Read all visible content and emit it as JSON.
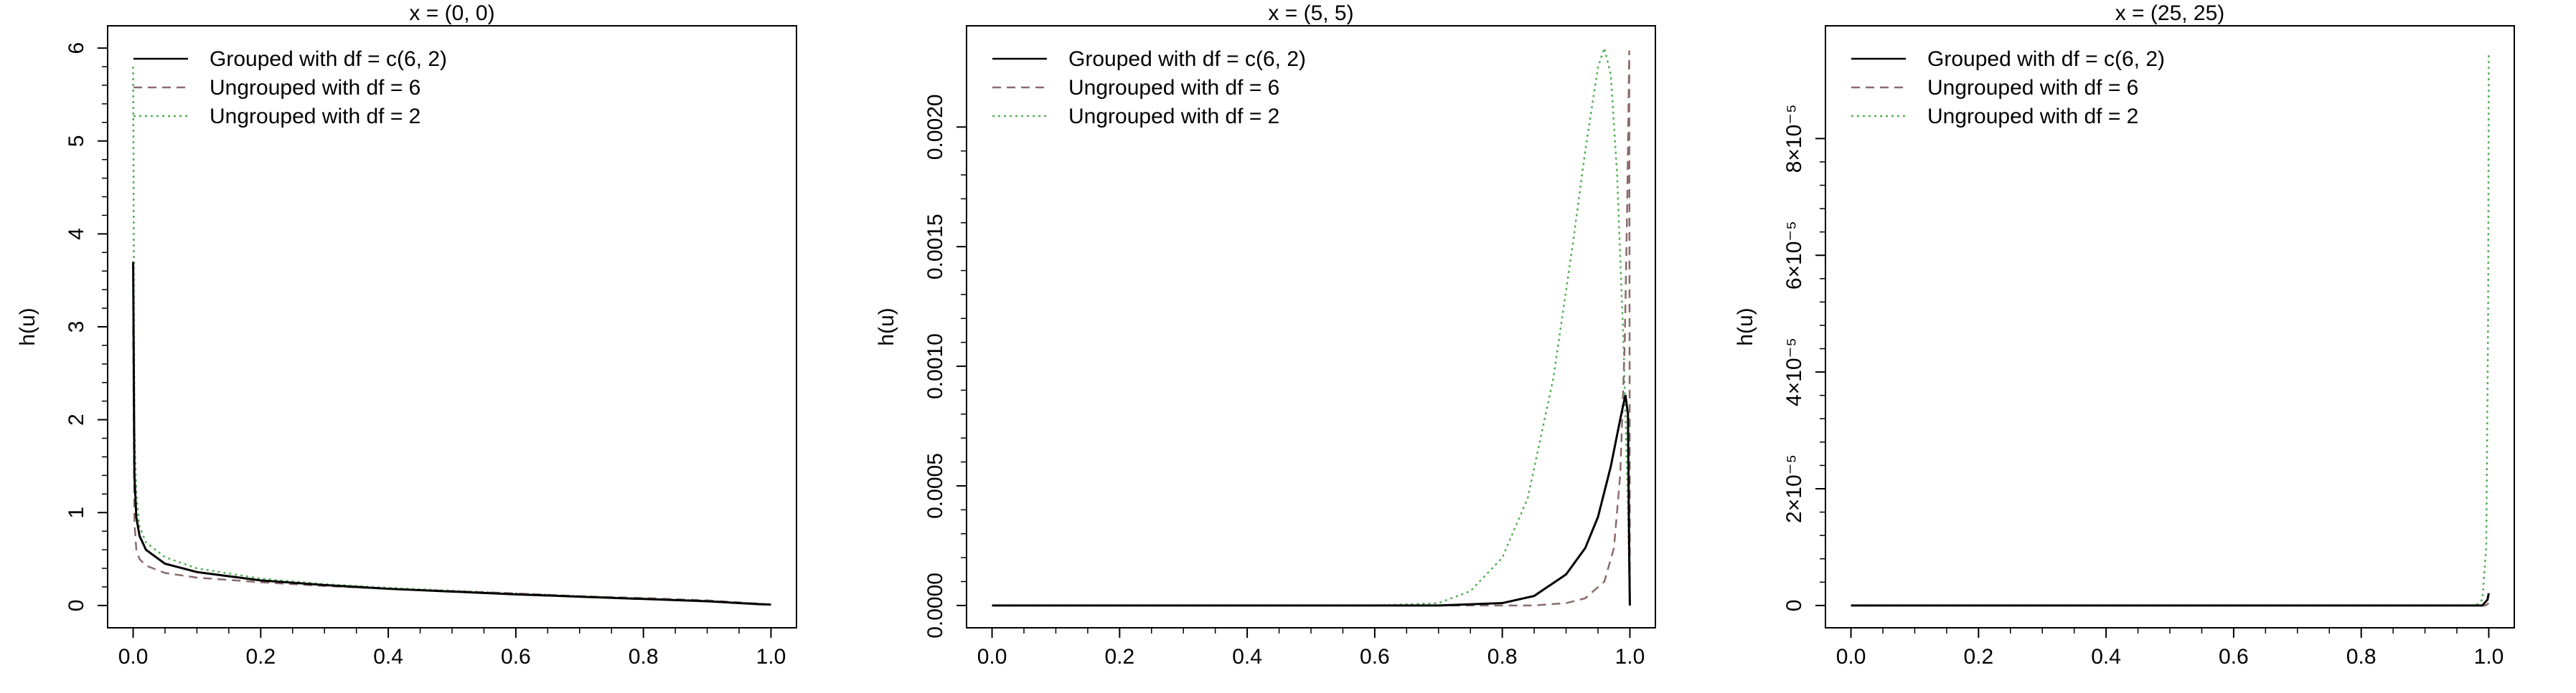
{
  "colors": {
    "grouped": "#000000",
    "ungrouped_df6": "#8B6B6B",
    "ungrouped_df2": "#52B152"
  },
  "legend": [
    {
      "label": "Grouped with df = c(6, 2)",
      "style": "solid"
    },
    {
      "label": "Ungrouped with df = 6",
      "style": "dashed"
    },
    {
      "label": "Ungrouped with df = 2",
      "style": "dotted"
    }
  ],
  "chart_data": [
    {
      "type": "line",
      "title": "x = (0, 0)",
      "xlabel": "",
      "ylabel": "h(u)",
      "xlim": [
        0,
        1
      ],
      "ylim": [
        0,
        6
      ],
      "xticks": [
        "0.0",
        "0.2",
        "0.4",
        "0.6",
        "0.8",
        "1.0"
      ],
      "yticks": [
        "0",
        "1",
        "2",
        "3",
        "4",
        "5",
        "6"
      ],
      "legend_position": "top-left",
      "grid": false,
      "series": [
        {
          "name": "Grouped with df = c(6, 2)",
          "points": [
            [
              0,
              3.7
            ],
            [
              0.002,
              1.4
            ],
            [
              0.005,
              0.95
            ],
            [
              0.01,
              0.75
            ],
            [
              0.02,
              0.6
            ],
            [
              0.05,
              0.45
            ],
            [
              0.1,
              0.36
            ],
            [
              0.2,
              0.27
            ],
            [
              0.3,
              0.22
            ],
            [
              0.4,
              0.18
            ],
            [
              0.5,
              0.15
            ],
            [
              0.6,
              0.12
            ],
            [
              0.7,
              0.095
            ],
            [
              0.8,
              0.07
            ],
            [
              0.9,
              0.045
            ],
            [
              0.98,
              0.015
            ],
            [
              1.0,
              0.01
            ]
          ]
        },
        {
          "name": "Ungrouped with df = 6",
          "points": [
            [
              0,
              3.0
            ],
            [
              0.002,
              0.9
            ],
            [
              0.005,
              0.6
            ],
            [
              0.01,
              0.5
            ],
            [
              0.02,
              0.43
            ],
            [
              0.05,
              0.35
            ],
            [
              0.1,
              0.3
            ],
            [
              0.2,
              0.25
            ],
            [
              0.3,
              0.21
            ],
            [
              0.4,
              0.18
            ],
            [
              0.5,
              0.155
            ],
            [
              0.6,
              0.13
            ],
            [
              0.7,
              0.1
            ],
            [
              0.8,
              0.08
            ],
            [
              0.9,
              0.055
            ],
            [
              0.98,
              0.02
            ],
            [
              1.0,
              0.01
            ]
          ]
        },
        {
          "name": "Ungrouped with df = 2",
          "points": [
            [
              0,
              5.8
            ],
            [
              0.002,
              1.9
            ],
            [
              0.005,
              1.2
            ],
            [
              0.01,
              0.85
            ],
            [
              0.02,
              0.68
            ],
            [
              0.05,
              0.52
            ],
            [
              0.1,
              0.4
            ],
            [
              0.2,
              0.29
            ],
            [
              0.3,
              0.23
            ],
            [
              0.4,
              0.19
            ],
            [
              0.5,
              0.16
            ],
            [
              0.6,
              0.13
            ],
            [
              0.7,
              0.1
            ],
            [
              0.8,
              0.075
            ],
            [
              0.9,
              0.05
            ],
            [
              0.98,
              0.02
            ],
            [
              1.0,
              0.01
            ]
          ]
        }
      ]
    },
    {
      "type": "line",
      "title": "x = (5, 5)",
      "xlabel": "",
      "ylabel": "h(u)",
      "xlim": [
        0,
        1
      ],
      "ylim": [
        0,
        0.00233
      ],
      "xticks": [
        "0.0",
        "0.2",
        "0.4",
        "0.6",
        "0.8",
        "1.0"
      ],
      "yticks": [
        "0.0000",
        "0.0005",
        "0.0010",
        "0.0015",
        "0.0020"
      ],
      "legend_position": "top-left",
      "grid": false,
      "series": [
        {
          "name": "Grouped with df = c(6, 2)",
          "points": [
            [
              0,
              0
            ],
            [
              0.7,
              0
            ],
            [
              0.8,
              1e-05
            ],
            [
              0.85,
              4e-05
            ],
            [
              0.9,
              0.00013
            ],
            [
              0.93,
              0.00024
            ],
            [
              0.95,
              0.00037
            ],
            [
              0.97,
              0.00058
            ],
            [
              0.985,
              0.00078
            ],
            [
              0.993,
              0.00088
            ],
            [
              0.997,
              0.0008
            ],
            [
              0.999,
              0.0002
            ],
            [
              1.0,
              0
            ]
          ]
        },
        {
          "name": "Ungrouped with df = 6",
          "points": [
            [
              0,
              0
            ],
            [
              0.85,
              0
            ],
            [
              0.9,
              1e-05
            ],
            [
              0.93,
              3e-05
            ],
            [
              0.96,
              0.0001
            ],
            [
              0.975,
              0.00024
            ],
            [
              0.985,
              0.00055
            ],
            [
              0.992,
              0.0011
            ],
            [
              0.996,
              0.0017
            ],
            [
              0.999,
              0.00232
            ],
            [
              1.0,
              0
            ]
          ]
        },
        {
          "name": "Ungrouped with df = 2",
          "points": [
            [
              0,
              0
            ],
            [
              0.6,
              0
            ],
            [
              0.7,
              1e-05
            ],
            [
              0.75,
              6e-05
            ],
            [
              0.8,
              0.0002
            ],
            [
              0.84,
              0.00045
            ],
            [
              0.88,
              0.00095
            ],
            [
              0.91,
              0.0015
            ],
            [
              0.93,
              0.0019
            ],
            [
              0.95,
              0.00225
            ],
            [
              0.96,
              0.00233
            ],
            [
              0.97,
              0.00222
            ],
            [
              0.98,
              0.0018
            ],
            [
              0.99,
              0.0011
            ],
            [
              0.997,
              0.0004
            ],
            [
              1.0,
              0
            ]
          ]
        }
      ]
    },
    {
      "type": "line",
      "title": "x = (25, 25)",
      "xlabel": "",
      "ylabel": "h(u)",
      "xlim": [
        0,
        1
      ],
      "ylim": [
        0,
        9.55e-05
      ],
      "xticks": [
        "0.0",
        "0.2",
        "0.4",
        "0.6",
        "0.8",
        "1.0"
      ],
      "yticks": [
        "0",
        "2×10⁻⁵",
        "4×10⁻⁵",
        "6×10⁻⁵",
        "8×10⁻⁵"
      ],
      "legend_position": "top-left",
      "grid": false,
      "series": [
        {
          "name": "Grouped with df = c(6, 2)",
          "points": [
            [
              0,
              0
            ],
            [
              0.99,
              0
            ],
            [
              0.998,
              1e-06
            ],
            [
              1.0,
              2.1e-06
            ]
          ]
        },
        {
          "name": "Ungrouped with df = 6",
          "points": [
            [
              0,
              0
            ],
            [
              0.995,
              0
            ],
            [
              1.0,
              4e-07
            ]
          ]
        },
        {
          "name": "Ungrouped with df = 2",
          "points": [
            [
              0,
              0
            ],
            [
              0.98,
              0
            ],
            [
              0.99,
              1e-06
            ],
            [
              0.996,
              1e-05
            ],
            [
              0.999,
              5e-05
            ],
            [
              1.0,
              9.45e-05
            ]
          ]
        }
      ]
    }
  ]
}
